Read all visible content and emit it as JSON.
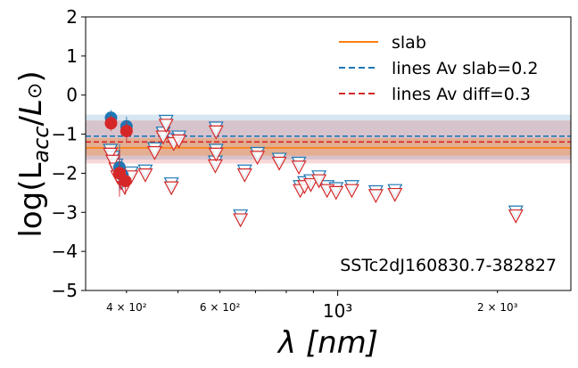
{
  "chart_data": {
    "type": "scatter",
    "title": "",
    "xlabel": "λ [nm]",
    "ylabel": "log(L_acc/L⊙)",
    "xscale": "log",
    "xlim": [
      335,
      2750
    ],
    "ylim": [
      -5,
      2
    ],
    "yticks": [
      2,
      1,
      0,
      -1,
      -2,
      -3,
      -4,
      -5
    ],
    "ytick_labels": [
      "2",
      "1",
      "0",
      "−1",
      "−2",
      "−3",
      "−4",
      "−5"
    ],
    "xticks_major": [
      {
        "value": 1000,
        "label": "10³"
      }
    ],
    "xticks_minor": [
      {
        "value": 400,
        "label": "4 × 10²"
      },
      {
        "value": 600,
        "label": "6 × 10²"
      },
      {
        "value": 2000,
        "label": "2 × 10³"
      }
    ],
    "annotation": "SSTc2dJ160830.7-382827",
    "legend": {
      "position": "top-right",
      "entries": [
        {
          "label": "slab",
          "color": "#ff7f0e",
          "style": "solid"
        },
        {
          "label": "lines Av slab=0.2",
          "color": "#1f77b4",
          "style": "dashed"
        },
        {
          "label": "lines Av diff=0.3",
          "color": "#d62728",
          "style": "dashed"
        }
      ]
    },
    "series": [
      {
        "name": "slab",
        "color": "#ff7f0e",
        "level": -1.35,
        "band": [
          -1.55,
          -1.1
        ]
      },
      {
        "name": "lines Av slab=0.2",
        "color": "#1f77b4",
        "level": -1.05,
        "band": [
          -1.65,
          -0.5
        ]
      },
      {
        "name": "lines Av diff=0.3",
        "color": "#d62728",
        "level": -1.2,
        "band": [
          -1.75,
          -0.65
        ]
      }
    ],
    "detections": [
      {
        "series": "lines Av slab=0.2",
        "color": "#1f77b4",
        "points": [
          {
            "x": 374,
            "y": -0.58,
            "err": 0.2
          },
          {
            "x": 400,
            "y": -0.8,
            "err": 0.25
          },
          {
            "x": 388,
            "y": -1.85,
            "err": 0.6
          },
          {
            "x": 393,
            "y": -2.05,
            "err": 0.35
          }
        ]
      },
      {
        "series": "lines Av diff=0.3",
        "color": "#d62728",
        "points": [
          {
            "x": 374,
            "y": -0.72,
            "err": 0.2
          },
          {
            "x": 400,
            "y": -0.92,
            "err": 0.25
          },
          {
            "x": 388,
            "y": -2.0,
            "err": 0.6
          },
          {
            "x": 398,
            "y": -2.2,
            "err": 0.35
          }
        ]
      }
    ],
    "upper_limits": {
      "lines Av slab=0.2": [
        {
          "x": 373,
          "y": -1.42
        },
        {
          "x": 377,
          "y": -1.6
        },
        {
          "x": 382,
          "y": -1.8
        },
        {
          "x": 385,
          "y": -2.0
        },
        {
          "x": 391,
          "y": -2.15
        },
        {
          "x": 397,
          "y": -2.27
        },
        {
          "x": 408,
          "y": -2.0
        },
        {
          "x": 434,
          "y": -1.95
        },
        {
          "x": 452,
          "y": -1.38
        },
        {
          "x": 469,
          "y": -0.98
        },
        {
          "x": 475,
          "y": -0.68
        },
        {
          "x": 486,
          "y": -2.28
        },
        {
          "x": 491,
          "y": -1.15
        },
        {
          "x": 502,
          "y": -1.08
        },
        {
          "x": 588,
          "y": -1.72
        },
        {
          "x": 590,
          "y": -1.42
        },
        {
          "x": 590,
          "y": -0.85
        },
        {
          "x": 656,
          "y": -3.1
        },
        {
          "x": 668,
          "y": -1.95
        },
        {
          "x": 706,
          "y": -1.5
        },
        {
          "x": 776,
          "y": -1.65
        },
        {
          "x": 845,
          "y": -1.75
        },
        {
          "x": 850,
          "y": -2.35
        },
        {
          "x": 866,
          "y": -2.25
        },
        {
          "x": 890,
          "y": -2.2
        },
        {
          "x": 922,
          "y": -2.1
        },
        {
          "x": 955,
          "y": -2.35
        },
        {
          "x": 993,
          "y": -2.4
        },
        {
          "x": 1063,
          "y": -2.35
        },
        {
          "x": 1180,
          "y": -2.48
        },
        {
          "x": 1282,
          "y": -2.45
        },
        {
          "x": 2166,
          "y": -3.0
        }
      ],
      "lines Av diff=0.3": [
        {
          "x": 373,
          "y": -1.52
        },
        {
          "x": 377,
          "y": -1.7
        },
        {
          "x": 382,
          "y": -1.9
        },
        {
          "x": 385,
          "y": -2.1
        },
        {
          "x": 391,
          "y": -2.25
        },
        {
          "x": 397,
          "y": -2.37
        },
        {
          "x": 408,
          "y": -2.1
        },
        {
          "x": 434,
          "y": -2.05
        },
        {
          "x": 452,
          "y": -1.48
        },
        {
          "x": 469,
          "y": -1.08
        },
        {
          "x": 475,
          "y": -0.78
        },
        {
          "x": 486,
          "y": -2.38
        },
        {
          "x": 491,
          "y": -1.25
        },
        {
          "x": 502,
          "y": -1.18
        },
        {
          "x": 588,
          "y": -1.82
        },
        {
          "x": 590,
          "y": -1.52
        },
        {
          "x": 590,
          "y": -0.95
        },
        {
          "x": 656,
          "y": -3.2
        },
        {
          "x": 668,
          "y": -2.05
        },
        {
          "x": 706,
          "y": -1.6
        },
        {
          "x": 776,
          "y": -1.75
        },
        {
          "x": 845,
          "y": -1.85
        },
        {
          "x": 850,
          "y": -2.45
        },
        {
          "x": 866,
          "y": -2.35
        },
        {
          "x": 890,
          "y": -2.3
        },
        {
          "x": 922,
          "y": -2.2
        },
        {
          "x": 955,
          "y": -2.45
        },
        {
          "x": 993,
          "y": -2.5
        },
        {
          "x": 1063,
          "y": -2.45
        },
        {
          "x": 1180,
          "y": -2.58
        },
        {
          "x": 1282,
          "y": -2.55
        },
        {
          "x": 2166,
          "y": -3.1
        }
      ]
    }
  }
}
